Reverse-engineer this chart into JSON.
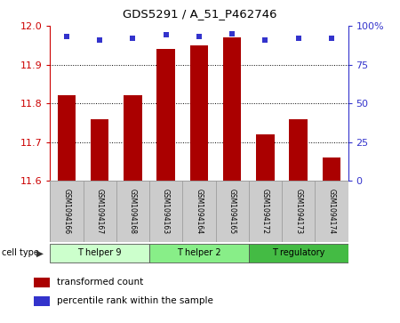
{
  "title": "GDS5291 / A_51_P462746",
  "samples": [
    "GSM1094166",
    "GSM1094167",
    "GSM1094168",
    "GSM1094163",
    "GSM1094164",
    "GSM1094165",
    "GSM1094172",
    "GSM1094173",
    "GSM1094174"
  ],
  "transformed_counts": [
    11.82,
    11.76,
    11.82,
    11.94,
    11.95,
    11.97,
    11.72,
    11.76,
    11.66
  ],
  "percentile_ranks": [
    93,
    91,
    92,
    94,
    93,
    95,
    91,
    92,
    92
  ],
  "ylim_left": [
    11.6,
    12.0
  ],
  "ylim_right": [
    0,
    100
  ],
  "yticks_left": [
    11.6,
    11.7,
    11.8,
    11.9,
    12.0
  ],
  "yticks_right": [
    0,
    25,
    50,
    75,
    100
  ],
  "bar_color": "#aa0000",
  "dot_color": "#3333cc",
  "group_colors": [
    "#ccffcc",
    "#88ee88",
    "#44bb44"
  ],
  "groups": [
    {
      "label": "T helper 9",
      "start": 0,
      "end": 3
    },
    {
      "label": "T helper 2",
      "start": 3,
      "end": 6
    },
    {
      "label": "T regulatory",
      "start": 6,
      "end": 9
    }
  ],
  "tick_label_color_left": "#cc0000",
  "tick_label_color_right": "#3333cc",
  "sample_box_color": "#cccccc",
  "sample_box_edge": "#999999"
}
